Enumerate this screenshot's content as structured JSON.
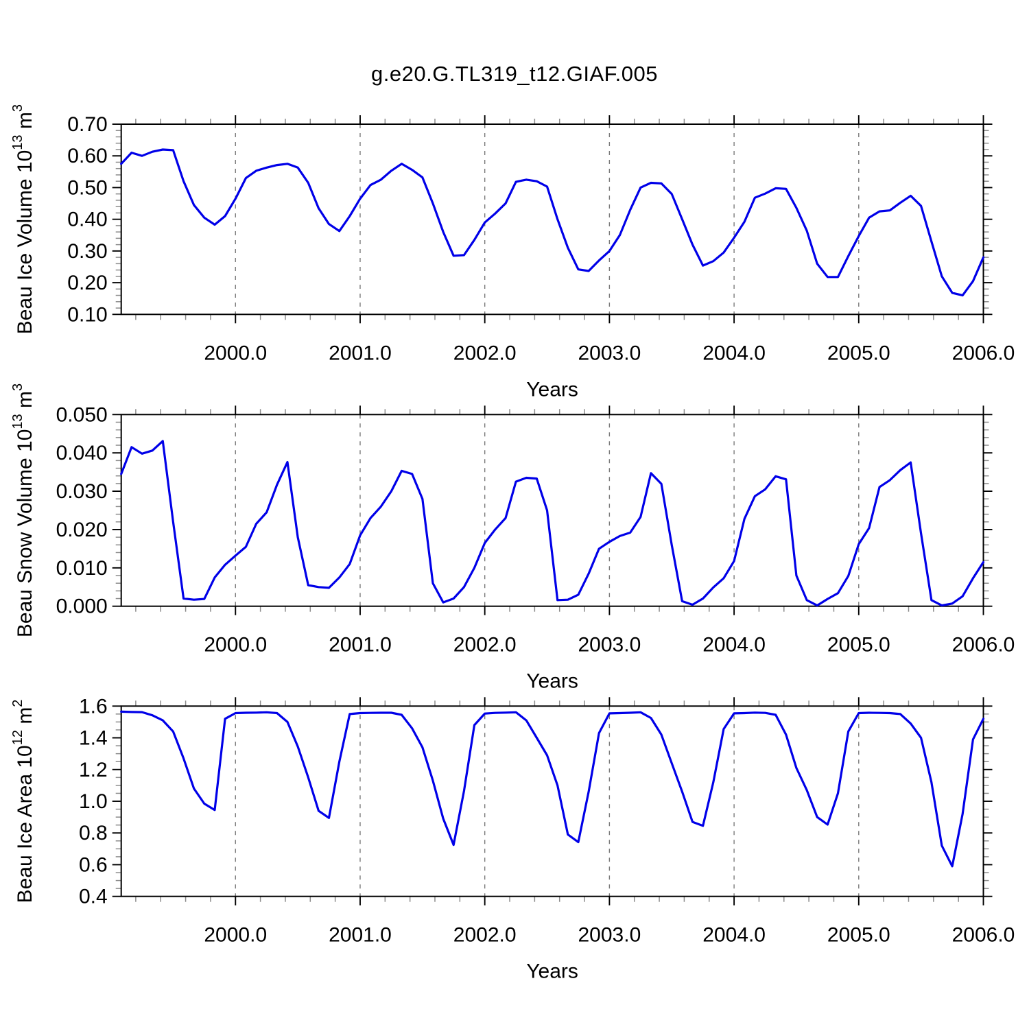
{
  "page_title": "g.e20.G.TL319_t12.GIAF.005",
  "colors": {
    "series_line": "#0000e8",
    "frame": "#000000",
    "major_tick": "#000000",
    "minor_tick": "#8c8c8c",
    "gridline": "#7a7a7a",
    "background": "#ffffff",
    "text": "#000000"
  },
  "x_axis": {
    "label": "Years",
    "tick_labels": [
      "2000.0",
      "2001.0",
      "2002.0",
      "2003.0",
      "2004.0",
      "2005.0",
      "2006.0"
    ]
  },
  "chart_data": [
    {
      "type": "line",
      "name": "beau-ice-volume",
      "ylabel_plain": "Beau Ice Volume 10^13 m^3",
      "ylabel_segments": [
        {
          "t": "Beau Ice Volume 10",
          "sup": false
        },
        {
          "t": "13",
          "sup": true
        },
        {
          "t": " m",
          "sup": false
        },
        {
          "t": "3",
          "sup": true
        }
      ],
      "xlabel": "Years",
      "grid": "vertical-dashed",
      "legend": "none",
      "xlim": [
        1999.0833,
        2006.0
      ],
      "ylim": [
        0.1,
        0.7
      ],
      "y_major_step": 0.1,
      "y_minor_step": 0.02,
      "y_tick_decimals": 2,
      "y_tick_labels": [
        "0.10",
        "0.20",
        "0.30",
        "0.40",
        "0.50",
        "0.60",
        "0.70"
      ],
      "x_major_step": 1.0,
      "x_minor_step": 0.2,
      "x_tick_decimals": 1,
      "x_start": 1999.0833,
      "x_step": 0.0833333,
      "values": [
        0.575,
        0.61,
        0.6,
        0.613,
        0.62,
        0.618,
        0.52,
        0.445,
        0.405,
        0.383,
        0.41,
        0.465,
        0.53,
        0.553,
        0.563,
        0.571,
        0.575,
        0.563,
        0.515,
        0.435,
        0.385,
        0.363,
        0.41,
        0.465,
        0.508,
        0.525,
        0.553,
        0.575,
        0.556,
        0.532,
        0.45,
        0.36,
        0.285,
        0.287,
        0.335,
        0.39,
        0.418,
        0.45,
        0.518,
        0.525,
        0.52,
        0.503,
        0.4,
        0.31,
        0.242,
        0.237,
        0.27,
        0.3,
        0.35,
        0.43,
        0.5,
        0.515,
        0.513,
        0.48,
        0.4,
        0.32,
        0.254,
        0.268,
        0.295,
        0.342,
        0.392,
        0.468,
        0.481,
        0.498,
        0.496,
        0.436,
        0.364,
        0.26,
        0.218,
        0.218,
        0.284,
        0.347,
        0.405,
        0.425,
        0.428,
        0.452,
        0.474,
        0.442,
        0.33,
        0.22,
        0.168,
        0.16,
        0.205,
        0.28
      ]
    },
    {
      "type": "line",
      "name": "beau-snow-volume",
      "ylabel_plain": "Beau Snow Volume 10^13 m^3",
      "ylabel_segments": [
        {
          "t": "Beau Snow Volume 10",
          "sup": false
        },
        {
          "t": "13",
          "sup": true
        },
        {
          "t": " m",
          "sup": false
        },
        {
          "t": "3",
          "sup": true
        }
      ],
      "xlabel": "Years",
      "grid": "vertical-dashed",
      "legend": "none",
      "xlim": [
        1999.0833,
        2006.0
      ],
      "ylim": [
        0.0,
        0.05
      ],
      "y_major_step": 0.01,
      "y_minor_step": 0.002,
      "y_tick_decimals": 3,
      "y_tick_labels": [
        "0.000",
        "0.010",
        "0.020",
        "0.030",
        "0.040",
        "0.050"
      ],
      "x_major_step": 1.0,
      "x_minor_step": 0.2,
      "x_tick_decimals": 1,
      "x_start": 1999.0833,
      "x_step": 0.0833333,
      "values": [
        0.0345,
        0.0415,
        0.0398,
        0.0406,
        0.0431,
        0.022,
        0.002,
        0.0017,
        0.0019,
        0.0075,
        0.0108,
        0.0132,
        0.0155,
        0.0215,
        0.0245,
        0.0317,
        0.0376,
        0.018,
        0.0055,
        0.005,
        0.0048,
        0.0075,
        0.011,
        0.0185,
        0.023,
        0.026,
        0.03,
        0.0353,
        0.0345,
        0.028,
        0.006,
        0.001,
        0.002,
        0.005,
        0.01,
        0.0165,
        0.02,
        0.023,
        0.0325,
        0.0335,
        0.0333,
        0.025,
        0.0016,
        0.0017,
        0.003,
        0.0085,
        0.015,
        0.0168,
        0.0183,
        0.0192,
        0.0233,
        0.0347,
        0.0319,
        0.016,
        0.0013,
        0.0004,
        0.002,
        0.0049,
        0.0073,
        0.0118,
        0.0228,
        0.0287,
        0.0305,
        0.0339,
        0.0331,
        0.008,
        0.0016,
        0.0002,
        0.0019,
        0.0034,
        0.0079,
        0.0162,
        0.0204,
        0.0311,
        0.0329,
        0.0355,
        0.0375,
        0.019,
        0.0016,
        0.0002,
        0.0007,
        0.0026,
        0.0073,
        0.0115
      ]
    },
    {
      "type": "line",
      "name": "beau-ice-area",
      "ylabel_plain": "Beau Ice Area 10^12 m^2",
      "ylabel_segments": [
        {
          "t": "Beau Ice Area 10",
          "sup": false
        },
        {
          "t": "12",
          "sup": true
        },
        {
          "t": " m",
          "sup": false
        },
        {
          "t": "2",
          "sup": true
        }
      ],
      "xlabel": "Years",
      "grid": "vertical-dashed",
      "legend": "none",
      "xlim": [
        1999.0833,
        2006.0
      ],
      "ylim": [
        0.4,
        1.6
      ],
      "y_major_step": 0.2,
      "y_minor_step": 0.05,
      "y_tick_decimals": 1,
      "y_tick_labels": [
        "0.4",
        "0.6",
        "0.8",
        "1.0",
        "1.2",
        "1.4",
        "1.6"
      ],
      "x_major_step": 1.0,
      "x_minor_step": 0.2,
      "x_tick_decimals": 1,
      "x_start": 1999.0833,
      "x_step": 0.0833333,
      "values": [
        1.565,
        1.563,
        1.562,
        1.542,
        1.51,
        1.44,
        1.27,
        1.08,
        0.985,
        0.945,
        1.52,
        1.556,
        1.558,
        1.559,
        1.561,
        1.556,
        1.5,
        1.345,
        1.15,
        0.94,
        0.895,
        1.25,
        1.55,
        1.556,
        1.557,
        1.558,
        1.558,
        1.545,
        1.46,
        1.34,
        1.13,
        0.89,
        0.725,
        1.065,
        1.48,
        1.553,
        1.557,
        1.559,
        1.561,
        1.51,
        1.4,
        1.29,
        1.1,
        0.79,
        0.742,
        1.06,
        1.43,
        1.554,
        1.556,
        1.558,
        1.561,
        1.525,
        1.42,
        1.24,
        1.06,
        0.87,
        0.845,
        1.12,
        1.455,
        1.554,
        1.556,
        1.559,
        1.557,
        1.545,
        1.42,
        1.21,
        1.07,
        0.9,
        0.853,
        1.05,
        1.44,
        1.556,
        1.558,
        1.557,
        1.556,
        1.55,
        1.49,
        1.4,
        1.12,
        0.72,
        0.59,
        0.92,
        1.39,
        1.52
      ]
    }
  ]
}
